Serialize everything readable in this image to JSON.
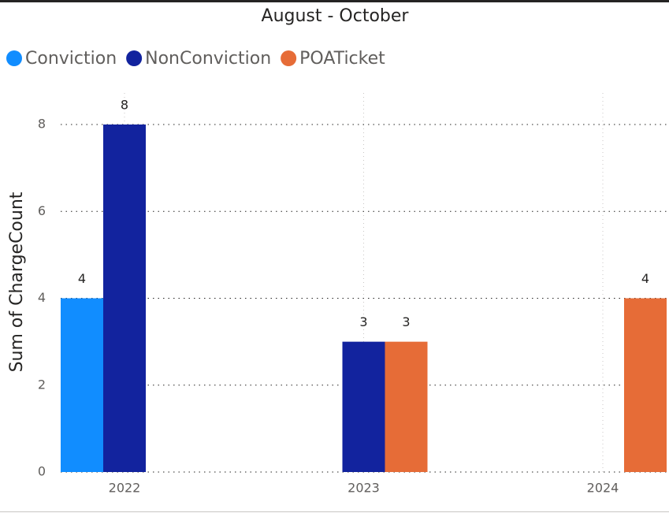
{
  "chart_data": {
    "type": "bar",
    "title": "August - October",
    "y_label": "Sum of ChargeCount",
    "categories": [
      "2022",
      "2023",
      "2024"
    ],
    "series": [
      {
        "name": "Conviction",
        "color": "#118dff",
        "values": [
          4,
          null,
          null
        ]
      },
      {
        "name": "NonConviction",
        "color": "#12239e",
        "values": [
          8,
          3,
          null
        ]
      },
      {
        "name": "POATicket",
        "color": "#e66c37",
        "values": [
          null,
          3,
          4
        ]
      }
    ],
    "ylim": [
      0,
      8
    ],
    "yticks": [
      0,
      2,
      4,
      6,
      8
    ],
    "grid": true
  }
}
